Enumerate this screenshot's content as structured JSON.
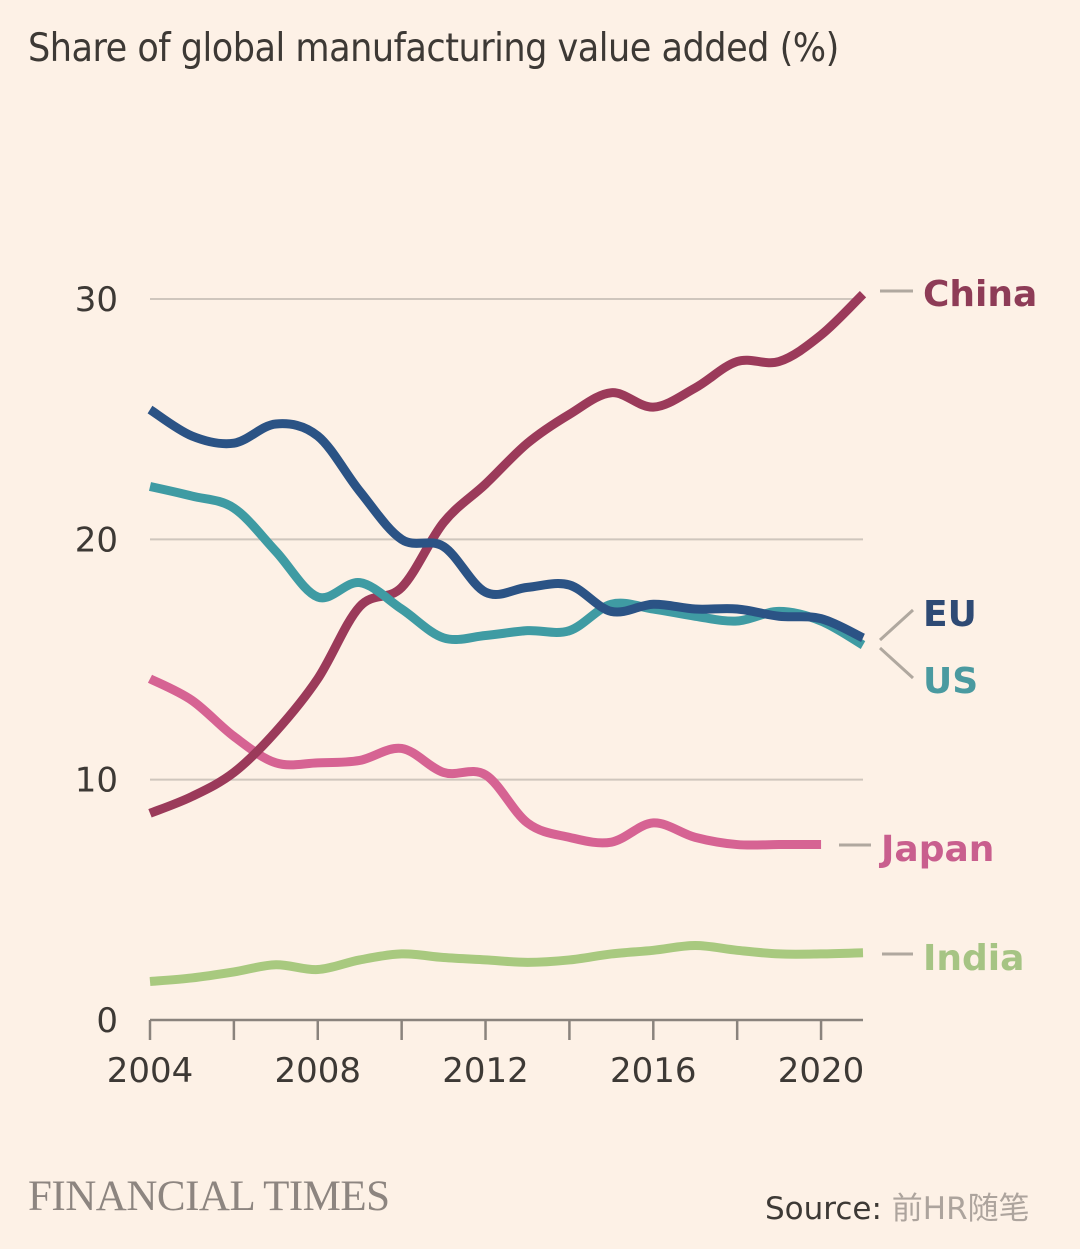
{
  "header": {
    "title": "Share of global manufacturing value added (%)"
  },
  "footer": {
    "brand": "FINANCIAL TIMES",
    "source_label": "Source:",
    "watermark": "前HR随笔"
  },
  "colors": {
    "background": "#fdf1e6",
    "grid": "#cfc6bd",
    "axis": "#8a837d",
    "leader": "#b0a89f"
  },
  "chart_data": {
    "type": "line",
    "title": "Share of global manufacturing value added (%)",
    "xlabel": "",
    "ylabel": "",
    "xlim": [
      2004,
      2021
    ],
    "ylim": [
      0,
      30
    ],
    "grid": true,
    "x_ticks": [
      2004,
      2006,
      2008,
      2010,
      2012,
      2014,
      2016,
      2018,
      2020
    ],
    "x_tick_labels": [
      "2004",
      "",
      "2008",
      "",
      "2012",
      "",
      "2016",
      "",
      "2020"
    ],
    "y_ticks": [
      0,
      10,
      20,
      30
    ],
    "y_tick_labels": [
      "0",
      "10",
      "20",
      "30"
    ],
    "legend": "direct labels at right end of lines",
    "series": [
      {
        "name": "China",
        "color": "#9b3a5a",
        "label_color": "#8e3c57",
        "x": [
          2004,
          2005,
          2006,
          2007,
          2008,
          2009,
          2010,
          2011,
          2012,
          2013,
          2014,
          2015,
          2016,
          2017,
          2018,
          2019,
          2020,
          2021
        ],
        "values": [
          8.6,
          9.3,
          10.3,
          12.0,
          14.2,
          17.2,
          18.0,
          20.7,
          22.3,
          24.0,
          25.2,
          26.1,
          25.5,
          26.3,
          27.4,
          27.4,
          28.5,
          30.2
        ]
      },
      {
        "name": "EU",
        "color": "#2b5385",
        "label_color": "#2e4a74",
        "x": [
          2004,
          2005,
          2006,
          2007,
          2008,
          2009,
          2010,
          2011,
          2012,
          2013,
          2014,
          2015,
          2016,
          2017,
          2018,
          2019,
          2020,
          2021
        ],
        "values": [
          25.4,
          24.3,
          24.0,
          24.8,
          24.3,
          22.0,
          20.0,
          19.7,
          17.8,
          18.0,
          18.1,
          17.0,
          17.3,
          17.1,
          17.1,
          16.8,
          16.7,
          15.9
        ]
      },
      {
        "name": "US",
        "color": "#3f9ba3",
        "label_color": "#4a9aa0",
        "x": [
          2004,
          2005,
          2006,
          2007,
          2008,
          2009,
          2010,
          2011,
          2012,
          2013,
          2014,
          2015,
          2016,
          2017,
          2018,
          2019,
          2020,
          2021
        ],
        "values": [
          22.2,
          21.8,
          21.3,
          19.5,
          17.6,
          18.2,
          17.1,
          15.9,
          16.0,
          16.2,
          16.2,
          17.3,
          17.1,
          16.8,
          16.6,
          17.0,
          16.6,
          15.6
        ]
      },
      {
        "name": "Japan",
        "color": "#d66393",
        "label_color": "#c95f8e",
        "x": [
          2004,
          2005,
          2006,
          2007,
          2008,
          2009,
          2010,
          2011,
          2012,
          2013,
          2014,
          2015,
          2016,
          2017,
          2018,
          2019,
          2020
        ],
        "values": [
          14.2,
          13.3,
          11.8,
          10.7,
          10.7,
          10.8,
          11.3,
          10.3,
          10.2,
          8.2,
          7.6,
          7.4,
          8.2,
          7.6,
          7.3,
          7.3,
          7.3
        ]
      },
      {
        "name": "India",
        "color": "#a8c97f",
        "label_color": "#a6c484",
        "x": [
          2004,
          2005,
          2006,
          2007,
          2008,
          2009,
          2010,
          2011,
          2012,
          2013,
          2014,
          2015,
          2016,
          2017,
          2018,
          2019,
          2020,
          2021
        ],
        "values": [
          1.6,
          1.75,
          2.0,
          2.3,
          2.1,
          2.5,
          2.75,
          2.6,
          2.5,
          2.4,
          2.5,
          2.75,
          2.9,
          3.1,
          2.9,
          2.75,
          2.75,
          2.8
        ]
      }
    ]
  }
}
